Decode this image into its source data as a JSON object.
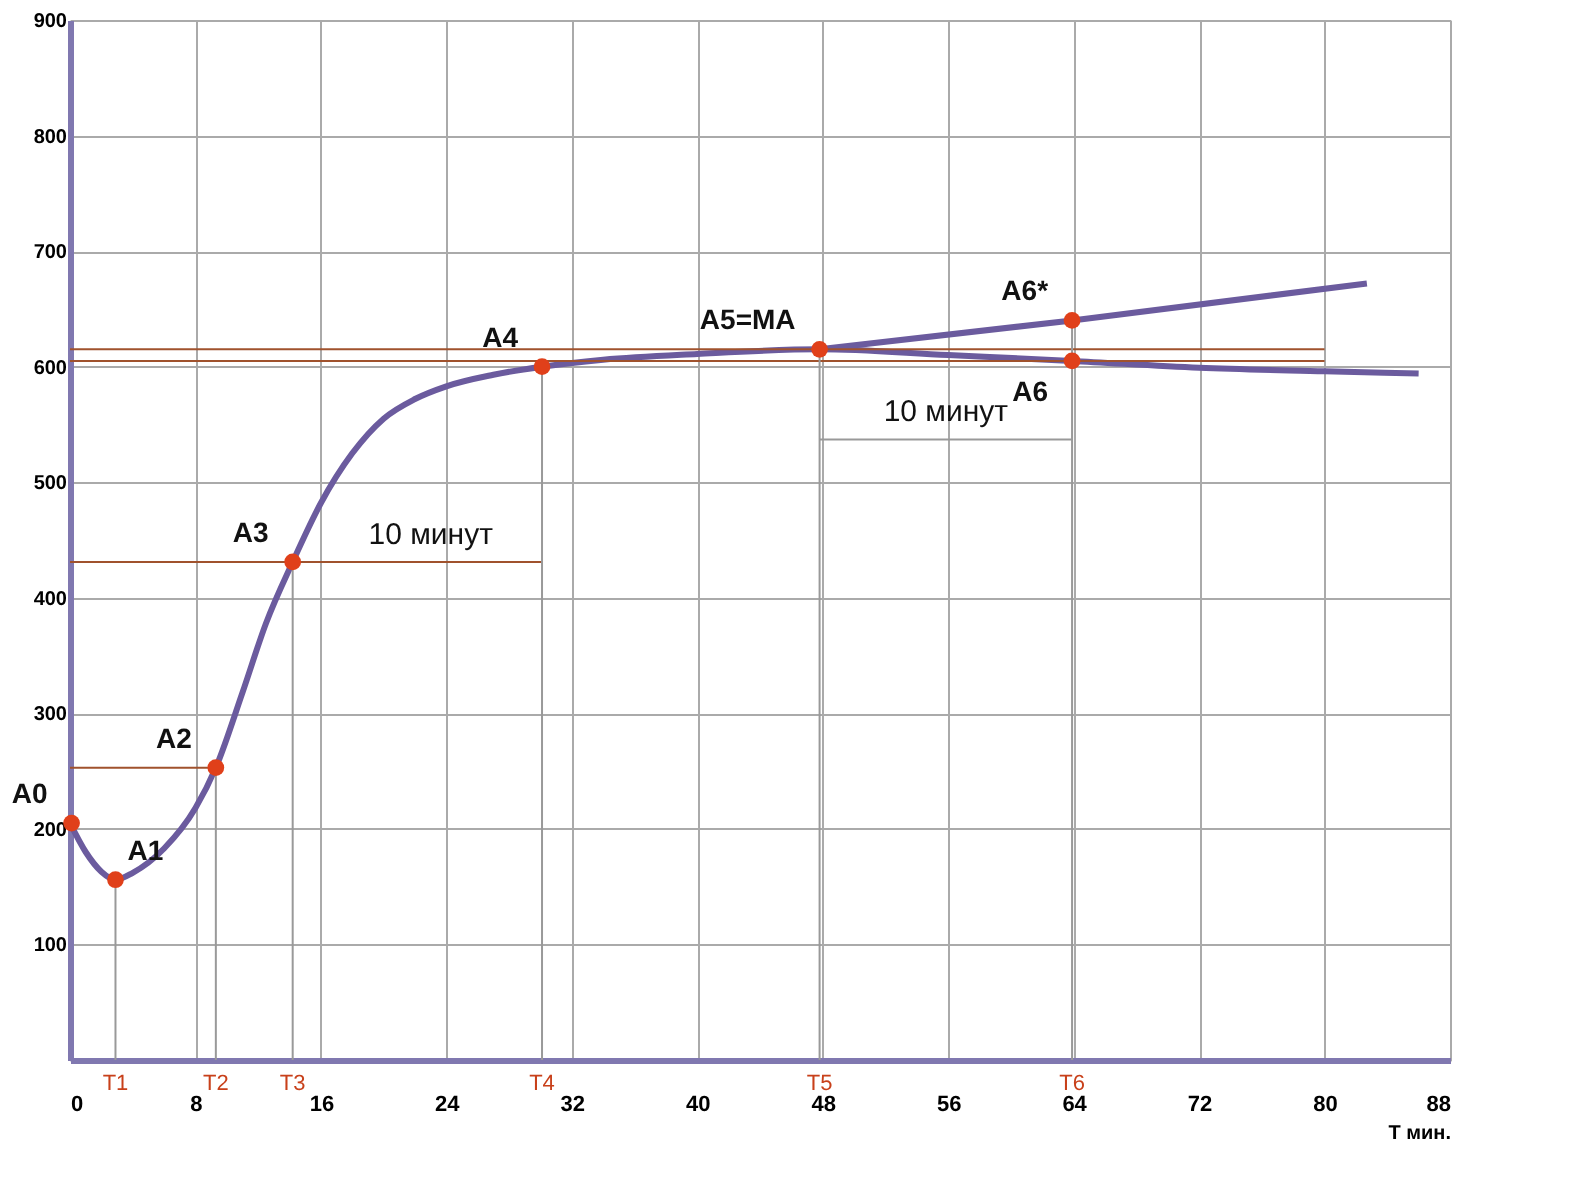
{
  "chart_data": {
    "type": "line",
    "xlabel": "Т мин.",
    "xlim": [
      0,
      88
    ],
    "ylim": [
      0,
      900
    ],
    "xticks": [
      0,
      8,
      16,
      24,
      32,
      40,
      48,
      56,
      64,
      72,
      80,
      88
    ],
    "yticks": [
      100,
      200,
      300,
      400,
      500,
      600,
      700,
      800,
      900
    ],
    "grid": true,
    "line_style": "solid",
    "series": [
      {
        "color": "#6b5b9e",
        "x": [
          0,
          1,
          2,
          2.9,
          4,
          6,
          8,
          9.3,
          11,
          12.5,
          14.2,
          16,
          18,
          20,
          22,
          24,
          27,
          30.1,
          34,
          40,
          47.8,
          56,
          63.9,
          72,
          80,
          86
        ],
        "values": [
          205,
          180,
          163,
          156,
          162,
          183,
          218,
          253,
          318,
          378,
          431,
          482,
          525,
          555,
          572,
          583,
          593,
          600,
          606,
          611,
          615,
          610,
          605,
          599,
          596,
          594
        ]
      },
      {
        "color": "#6b5b9e",
        "x": [
          47.8,
          63.9,
          82.7
        ],
        "values": [
          615,
          640,
          672
        ]
      },
      {
        "color": "#a0522d",
        "x": [
          0,
          9.3
        ],
        "values": [
          253,
          253
        ]
      },
      {
        "color": "#a0522d",
        "x": [
          0,
          30.1
        ],
        "values": [
          431,
          431
        ]
      },
      {
        "color": "#a0522d",
        "x": [
          0,
          80
        ],
        "values": [
          605,
          605
        ]
      },
      {
        "color": "#a0522d",
        "x": [
          0,
          80
        ],
        "values": [
          615,
          615
        ]
      },
      {
        "color": "#999999",
        "x": [
          2.9,
          2.9
        ],
        "values": [
          0,
          156
        ]
      },
      {
        "color": "#999999",
        "x": [
          9.3,
          9.3
        ],
        "values": [
          0,
          253
        ]
      },
      {
        "color": "#999999",
        "x": [
          14.2,
          14.2
        ],
        "values": [
          0,
          431
        ]
      },
      {
        "color": "#999999",
        "x": [
          30.1,
          30.1
        ],
        "values": [
          0,
          600
        ]
      },
      {
        "color": "#999999",
        "x": [
          47.8,
          47.8
        ],
        "values": [
          0,
          615
        ]
      },
      {
        "color": "#999999",
        "x": [
          63.9,
          63.9
        ],
        "values": [
          0,
          640
        ]
      },
      {
        "color": "#999999",
        "x": [
          47.8,
          63.9
        ],
        "values": [
          537,
          537
        ]
      },
      {
        "type": "scatter",
        "color": "#e0401a",
        "x": [
          0.1,
          2.9,
          9.3,
          14.2,
          30.1,
          47.8,
          63.9,
          63.9
        ],
        "values": [
          205,
          156,
          253,
          431,
          600,
          615,
          640,
          605
        ]
      }
    ],
    "annotations": [
      {
        "text": "A0",
        "x": 0.1,
        "y": 205
      },
      {
        "text": "A1",
        "x": 2.9,
        "y": 156
      },
      {
        "text": "A2",
        "x": 9.3,
        "y": 253
      },
      {
        "text": "A3",
        "x": 14.2,
        "y": 431
      },
      {
        "text": "A4",
        "x": 30.1,
        "y": 600
      },
      {
        "text": "A5=MA",
        "x": 47.8,
        "y": 615
      },
      {
        "text": "A6*",
        "x": 63.9,
        "y": 640
      },
      {
        "text": "A6",
        "x": 63.9,
        "y": 605
      },
      {
        "text": "10 минут",
        "x": 23,
        "y": 431
      },
      {
        "text": "10 минут",
        "x": 55.85,
        "y": 537
      },
      {
        "text": "T1",
        "x": 2.9,
        "y": 0
      },
      {
        "text": "T2",
        "x": 9.3,
        "y": 0
      },
      {
        "text": "T3",
        "x": 14.2,
        "y": 0
      },
      {
        "text": "T4",
        "x": 30.1,
        "y": 0
      },
      {
        "text": "T5",
        "x": 47.8,
        "y": 0
      },
      {
        "text": "T6",
        "x": 63.9,
        "y": 0
      }
    ]
  }
}
